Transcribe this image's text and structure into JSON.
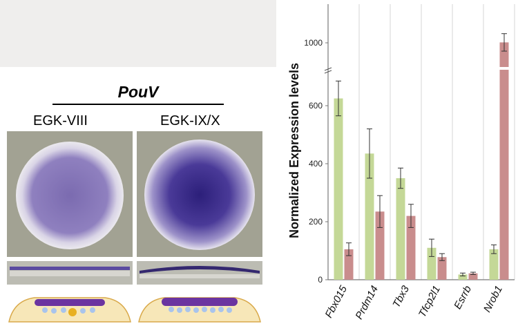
{
  "figure": {
    "gene": "PouV",
    "stages": [
      "EGK-VIII",
      "EGK-IX/X"
    ]
  },
  "chart_data": {
    "type": "bar",
    "ylabel": "Normalized Expression levels",
    "categories": [
      "Fbx015",
      "Prdm14",
      "Tbx3",
      "Tfcp2l1",
      "Esrrb",
      "Nrob1"
    ],
    "y_ticks": [
      "0",
      "200",
      "400",
      "600",
      "1000"
    ],
    "axis_break": "between 700 and 950",
    "series": [
      {
        "color": "#c4d897",
        "values": [
          625,
          435,
          350,
          110,
          18,
          105
        ],
        "errors": [
          60,
          85,
          35,
          30,
          5,
          15
        ]
      },
      {
        "color": "#c98d8d",
        "values": [
          105,
          235,
          220,
          78,
          22,
          1005
        ],
        "errors": [
          22,
          55,
          40,
          12,
          4,
          100
        ]
      }
    ],
    "grid": true
  }
}
